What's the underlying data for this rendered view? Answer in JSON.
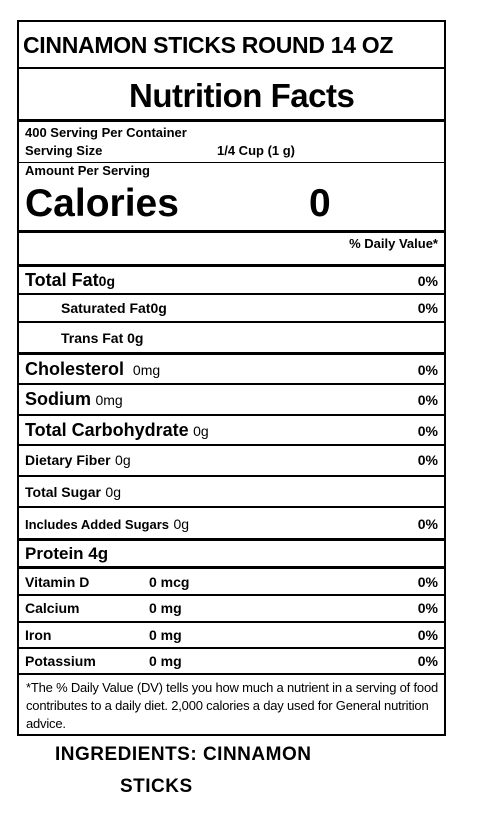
{
  "product_title": "CINNAMON STICKS ROUND 14 OZ",
  "heading": "Nutrition Facts",
  "servings_per_container": "400 Serving Per Container",
  "serving_size_label": "Serving Size",
  "serving_size_value": "1/4 Cup (1 g)",
  "amount_per_serving": "Amount Per Serving",
  "calories_label": "Calories",
  "calories_value": "0",
  "daily_value_header": "% Daily Value*",
  "nutrients": {
    "total_fat": {
      "label": "Total Fat",
      "amount": "0g",
      "dv": "0%"
    },
    "saturated_fat": {
      "label": "Saturated Fat",
      "amount": "0g",
      "dv": "0%"
    },
    "trans_fat": {
      "label": "Trans Fat 0g"
    },
    "cholesterol": {
      "label": "Cholesterol",
      "amount": "0mg",
      "dv": "0%"
    },
    "sodium": {
      "label": "Sodium",
      "amount": "0mg",
      "dv": "0%"
    },
    "total_carbohydrate": {
      "label": "Total Carbohydrate",
      "amount": "0g",
      "dv": "0%"
    },
    "dietary_fiber": {
      "label": "Dietary Fiber",
      "amount": "0g",
      "dv": "0%"
    },
    "total_sugar": {
      "label": "Total Sugar",
      "amount": "0g"
    },
    "added_sugars": {
      "label": "Includes Added Sugars",
      "amount": "0g",
      "dv": "0%"
    },
    "protein": {
      "label": "Protein 4g"
    }
  },
  "vitamins": [
    {
      "label": "Vitamin D",
      "amount": "0 mcg",
      "dv": "0%"
    },
    {
      "label": "Calcium",
      "amount": "0 mg",
      "dv": "0%"
    },
    {
      "label": "Iron",
      "amount": "0 mg",
      "dv": "0%"
    },
    {
      "label": "Potassium",
      "amount": "0 mg",
      "dv": "0%"
    }
  ],
  "footnote": "*The % Daily Value (DV) tells you how much a nutrient in a serving of food contributes to a daily diet. 2,000 calories a day used for General nutrition advice.",
  "ingredients_line1": "INGREDIENTS: CINNAMON",
  "ingredients_line2": "STICKS"
}
